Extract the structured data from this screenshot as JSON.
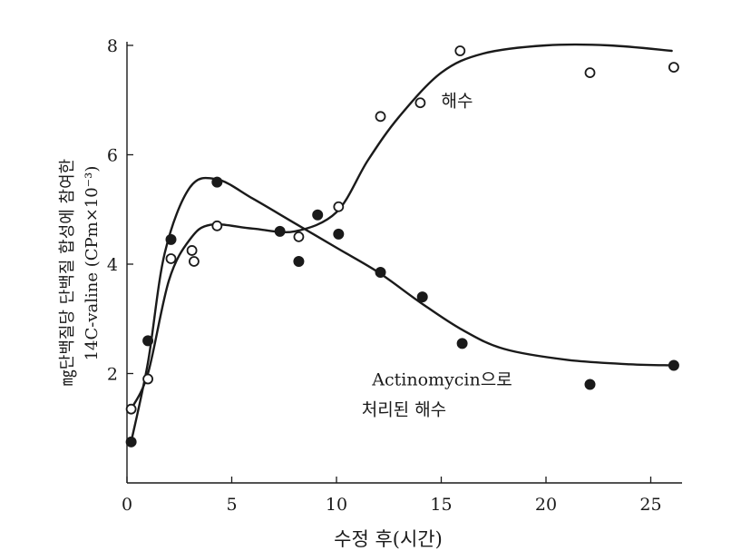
{
  "chart_data": {
    "type": "scatter",
    "xlabel": "수정 후(시간)",
    "ylabel_line1": "㎎단백질당 단백질 합성에 참여한",
    "ylabel_line2": "14C-valine (CPm×10⁻³)",
    "xlim": [
      0,
      26.5
    ],
    "ylim": [
      0,
      8
    ],
    "x_ticks": [
      0,
      5,
      10,
      15,
      20,
      25
    ],
    "y_ticks": [
      2,
      4,
      6,
      8
    ],
    "x_tick_labels": [
      "0",
      "5",
      "10",
      "15",
      "20",
      "25"
    ],
    "y_tick_labels": [
      "2",
      "4",
      "6",
      "8"
    ],
    "series": [
      {
        "marker": "open-circle",
        "color": "#1a1a1a",
        "points": [
          [
            0.2,
            1.35
          ],
          [
            1.0,
            1.9
          ],
          [
            2.1,
            4.1
          ],
          [
            3.1,
            4.25
          ],
          [
            3.2,
            4.05
          ],
          [
            4.3,
            4.7
          ],
          [
            8.2,
            4.5
          ],
          [
            10.1,
            5.05
          ],
          [
            12.1,
            6.7
          ],
          [
            14.0,
            6.95
          ],
          [
            15.9,
            7.9
          ],
          [
            22.1,
            7.5
          ],
          [
            26.1,
            7.6
          ]
        ],
        "curve": [
          [
            0.2,
            1.35
          ],
          [
            1.0,
            2.0
          ],
          [
            2.0,
            3.7
          ],
          [
            3.0,
            4.45
          ],
          [
            4.0,
            4.72
          ],
          [
            6.0,
            4.65
          ],
          [
            8.0,
            4.6
          ],
          [
            10.0,
            4.95
          ],
          [
            11.5,
            5.9
          ],
          [
            13.0,
            6.7
          ],
          [
            15.0,
            7.5
          ],
          [
            17.0,
            7.85
          ],
          [
            20.0,
            8.0
          ],
          [
            23.0,
            8.0
          ],
          [
            26.0,
            7.9
          ]
        ]
      },
      {
        "marker": "filled-circle",
        "color": "#1a1a1a",
        "points": [
          [
            0.2,
            0.75
          ],
          [
            1.0,
            2.6
          ],
          [
            2.1,
            4.45
          ],
          [
            4.3,
            5.5
          ],
          [
            7.3,
            4.6
          ],
          [
            8.2,
            4.05
          ],
          [
            9.1,
            4.9
          ],
          [
            10.1,
            4.55
          ],
          [
            12.1,
            3.85
          ],
          [
            14.1,
            3.4
          ],
          [
            16.0,
            2.55
          ],
          [
            22.1,
            1.8
          ],
          [
            26.1,
            2.15
          ]
        ],
        "curve": [
          [
            0.2,
            0.75
          ],
          [
            1.0,
            2.2
          ],
          [
            1.8,
            4.2
          ],
          [
            3.0,
            5.4
          ],
          [
            4.3,
            5.55
          ],
          [
            6.0,
            5.2
          ],
          [
            8.0,
            4.75
          ],
          [
            10.0,
            4.3
          ],
          [
            12.0,
            3.85
          ],
          [
            14.0,
            3.3
          ],
          [
            16.0,
            2.8
          ],
          [
            18.0,
            2.45
          ],
          [
            21.0,
            2.25
          ],
          [
            24.0,
            2.17
          ],
          [
            26.0,
            2.15
          ]
        ]
      }
    ],
    "annotations": [
      {
        "text": "해수",
        "x": 15.0,
        "y": 7.0
      },
      {
        "text": "Actinomycin으로",
        "x": 11.7,
        "y": 1.9
      },
      {
        "text": "처리된 해수",
        "x": 11.2,
        "y": 1.35
      }
    ]
  }
}
